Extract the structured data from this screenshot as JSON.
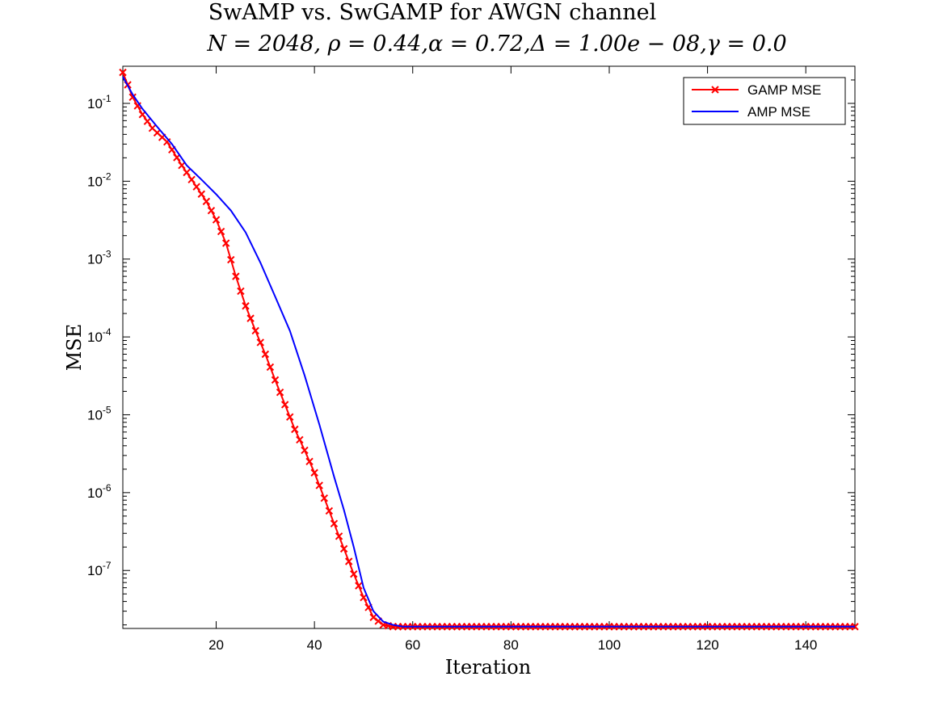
{
  "chart_data": {
    "type": "line",
    "title": "SwAMP vs. SwGAMP for AWGN channel",
    "subtitle": "N = 2048, ρ = 0.44,α = 0.72,Δ = 1.00e − 08,γ = 0.0",
    "xlabel": "Iteration",
    "ylabel": "MSE",
    "xlim": [
      1,
      150
    ],
    "ylim": [
      1.8e-08,
      0.3
    ],
    "yscale": "log",
    "grid": false,
    "legend_position": "top-right",
    "x_ticks": [
      20,
      40,
      60,
      80,
      100,
      120,
      140
    ],
    "y_ticks": [
      {
        "value": 1e-07,
        "base": "10",
        "exp": "-7"
      },
      {
        "value": 1e-06,
        "base": "10",
        "exp": "-6"
      },
      {
        "value": 1e-05,
        "base": "10",
        "exp": "-5"
      },
      {
        "value": 0.0001,
        "base": "10",
        "exp": "-4"
      },
      {
        "value": 0.001,
        "base": "10",
        "exp": "-3"
      },
      {
        "value": 0.01,
        "base": "10",
        "exp": "-2"
      },
      {
        "value": 0.1,
        "base": "10",
        "exp": "-1"
      }
    ],
    "series": [
      {
        "name": "GAMP MSE",
        "color": "#ff0000",
        "marker": "x",
        "points": [
          [
            1,
            0.25
          ],
          [
            3,
            0.12
          ],
          [
            5,
            0.072
          ],
          [
            7,
            0.048
          ],
          [
            10,
            0.032
          ],
          [
            13,
            0.016
          ],
          [
            16,
            0.0085
          ],
          [
            18,
            0.0055
          ],
          [
            20,
            0.0032
          ],
          [
            22,
            0.0016
          ],
          [
            24,
            0.0006
          ],
          [
            26,
            0.00025
          ],
          [
            28,
            0.00012
          ],
          [
            30,
            6e-05
          ],
          [
            32,
            2.8e-05
          ],
          [
            34,
            1.35e-05
          ],
          [
            36,
            6.5e-06
          ],
          [
            38,
            3.5e-06
          ],
          [
            40,
            1.8e-06
          ],
          [
            42,
            8.5e-07
          ],
          [
            44,
            4e-07
          ],
          [
            46,
            1.9e-07
          ],
          [
            48,
            9e-08
          ],
          [
            50,
            4.5e-08
          ],
          [
            52,
            2.5e-08
          ],
          [
            54,
            2e-08
          ],
          [
            56,
            1.9e-08
          ],
          [
            58,
            1.9e-08
          ],
          [
            150,
            1.9e-08
          ]
        ]
      },
      {
        "name": "AMP MSE",
        "color": "#0000ff",
        "marker": "none",
        "points": [
          [
            1,
            0.22
          ],
          [
            3,
            0.13
          ],
          [
            5,
            0.085
          ],
          [
            8,
            0.05
          ],
          [
            11,
            0.03
          ],
          [
            14,
            0.016
          ],
          [
            17,
            0.0105
          ],
          [
            20,
            0.0068
          ],
          [
            23,
            0.0042
          ],
          [
            26,
            0.0022
          ],
          [
            29,
            0.0009
          ],
          [
            32,
            0.00033
          ],
          [
            35,
            0.00012
          ],
          [
            38,
            3.2e-05
          ],
          [
            41,
            7.5e-06
          ],
          [
            44,
            1.6e-06
          ],
          [
            46,
            6e-07
          ],
          [
            48,
            2e-07
          ],
          [
            50,
            6e-08
          ],
          [
            52,
            3e-08
          ],
          [
            54,
            2.2e-08
          ],
          [
            56,
            2e-08
          ],
          [
            58,
            1.9e-08
          ],
          [
            150,
            1.9e-08
          ]
        ]
      }
    ]
  }
}
